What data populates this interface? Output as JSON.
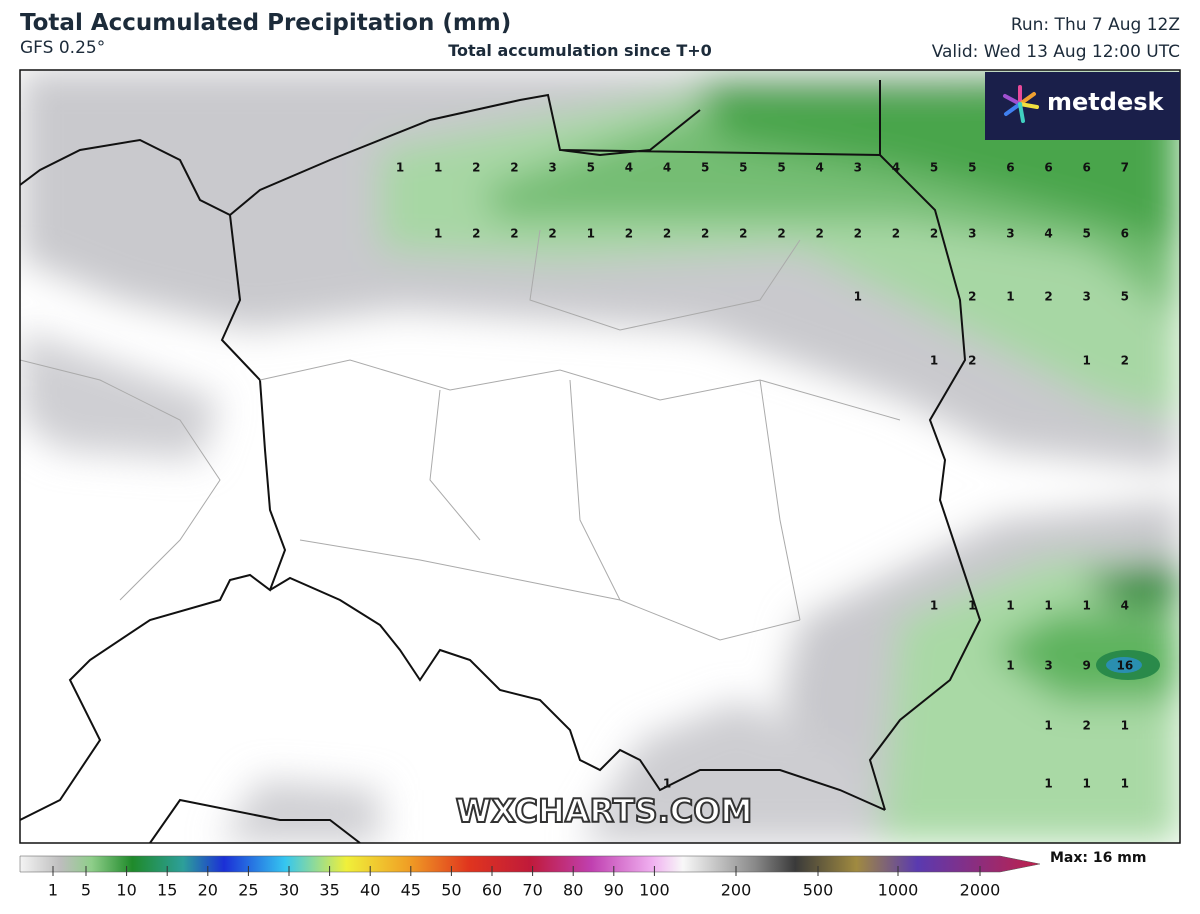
{
  "header": {
    "title": "Total Accumulated Precipitation (mm)",
    "model": "GFS 0.25°",
    "subtitle": "Total accumulation since T+0",
    "run": "Run: Thu 7 Aug 12Z",
    "valid": "Valid: Wed 13 Aug 12:00 UTC"
  },
  "logo": "metdesk",
  "watermark": "WXCHARTS.COM",
  "map": {
    "rows": [
      [
        1,
        1,
        2,
        2,
        3,
        5,
        4,
        4,
        5,
        5,
        5,
        4,
        3,
        4,
        5,
        5,
        6,
        6,
        6,
        7
      ],
      [
        null,
        1,
        2,
        2,
        2,
        1,
        2,
        2,
        2,
        2,
        2,
        2,
        2,
        2,
        2,
        3,
        3,
        4,
        5,
        6
      ],
      [
        null,
        null,
        null,
        null,
        null,
        null,
        null,
        null,
        null,
        null,
        null,
        null,
        1,
        null,
        null,
        2,
        1,
        2,
        3,
        5
      ],
      [
        null,
        null,
        null,
        null,
        null,
        null,
        null,
        null,
        null,
        null,
        null,
        null,
        null,
        null,
        1,
        2,
        null,
        null,
        1,
        2
      ],
      [
        null,
        null,
        null,
        null,
        null,
        null,
        null,
        null,
        null,
        null,
        null,
        null,
        null,
        null,
        1,
        1,
        1,
        1,
        1,
        4
      ],
      [
        null,
        null,
        null,
        null,
        null,
        null,
        null,
        null,
        null,
        null,
        null,
        null,
        null,
        null,
        null,
        null,
        1,
        3,
        9,
        16
      ],
      [
        null,
        null,
        null,
        null,
        null,
        null,
        null,
        null,
        null,
        null,
        null,
        null,
        null,
        null,
        null,
        null,
        null,
        1,
        2,
        1
      ],
      [
        null,
        null,
        null,
        null,
        null,
        null,
        null,
        1,
        null,
        null,
        null,
        null,
        null,
        null,
        null,
        null,
        null,
        1,
        1,
        1
      ]
    ]
  },
  "colorbar": {
    "ticks": [
      1,
      5,
      10,
      15,
      20,
      25,
      30,
      35,
      40,
      45,
      50,
      60,
      70,
      80,
      90,
      100,
      200,
      500,
      1000,
      2000
    ],
    "max": "Max: 16 mm"
  }
}
